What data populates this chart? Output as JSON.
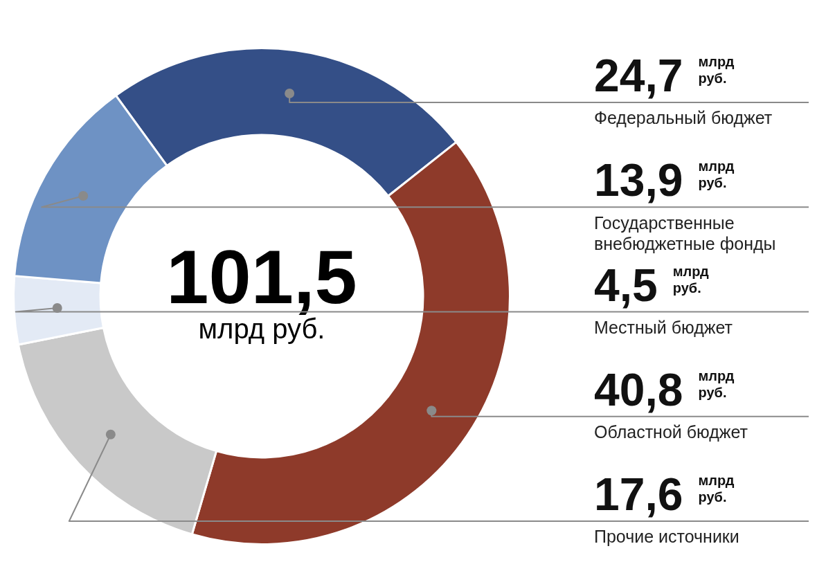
{
  "chart_data": {
    "type": "donut",
    "categories": [
      "Федеральный бюджет",
      "Областной бюджет",
      "Прочие источники",
      "Местный бюджет",
      "Государственные внебюджетные фонды"
    ],
    "values": [
      24.7,
      40.8,
      17.6,
      4.5,
      13.9
    ],
    "colors": [
      "#344f87",
      "#8e3a2a",
      "#c9c9c9",
      "#e3eaf5",
      "#6e92c4"
    ],
    "value_labels": [
      "24,7 млрд руб.",
      "40,8 млрд руб.",
      "17,6 млрд руб.",
      "4,5 млрд руб.",
      "13,9 млрд руб."
    ],
    "annotations": [
      "101,5",
      "млрд руб."
    ],
    "legend": false
  }
}
